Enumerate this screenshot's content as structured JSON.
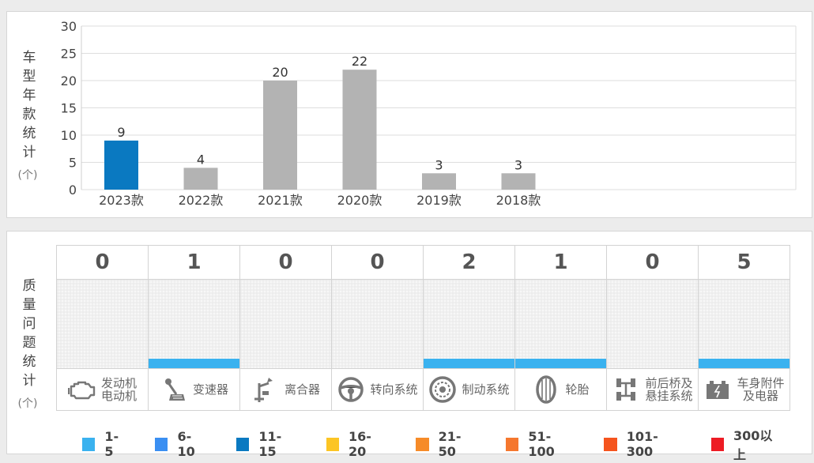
{
  "chart_data": {
    "type": "bar",
    "ylabel_chars": [
      "车",
      "型",
      "年",
      "款",
      "统",
      "计"
    ],
    "yunit": "(个)",
    "categories": [
      "2023款",
      "2022款",
      "2021款",
      "2020款",
      "2019款",
      "2018款"
    ],
    "values": [
      9,
      4,
      20,
      22,
      3,
      3
    ],
    "highlight_index": 0,
    "colors": {
      "highlight": "#0a79c1",
      "default": "#b3b3b3"
    },
    "ylim": [
      0,
      30
    ],
    "yticks": [
      0,
      5,
      10,
      15,
      20,
      25,
      30
    ],
    "grid": true
  },
  "quality": {
    "ylabel_chars": [
      "质",
      "量",
      "问",
      "题",
      "统",
      "计"
    ],
    "yunit": "(个)",
    "items": [
      {
        "count": "0",
        "value": 0,
        "icon": "engine-icon",
        "label_lines": [
          "发动机",
          "电动机"
        ]
      },
      {
        "count": "1",
        "value": 1,
        "icon": "gear-shift-icon",
        "label_lines": [
          "变速器"
        ]
      },
      {
        "count": "0",
        "value": 0,
        "icon": "clutch-pedal-icon",
        "label_lines": [
          "离合器"
        ]
      },
      {
        "count": "0",
        "value": 0,
        "icon": "steering-wheel-icon",
        "label_lines": [
          "转向系统"
        ]
      },
      {
        "count": "2",
        "value": 2,
        "icon": "brake-disc-icon",
        "label_lines": [
          "制动系统"
        ]
      },
      {
        "count": "1",
        "value": 1,
        "icon": "tire-icon",
        "label_lines": [
          "轮胎"
        ]
      },
      {
        "count": "0",
        "value": 0,
        "icon": "axle-suspension-icon",
        "label_lines": [
          "前后桥及",
          "悬挂系统"
        ]
      },
      {
        "count": "5",
        "value": 5,
        "icon": "battery-icon",
        "label_lines": [
          "车身附件",
          "及电器"
        ]
      }
    ],
    "bar_color": "#3ab2ef",
    "legend": [
      {
        "label": "1-5",
        "color": "#3ab2ef"
      },
      {
        "label": "6-10",
        "color": "#3a8ff2"
      },
      {
        "label": "11-15",
        "color": "#0a79c1"
      },
      {
        "label": "16-20",
        "color": "#fcc524"
      },
      {
        "label": "21-50",
        "color": "#f68b28"
      },
      {
        "label": "51-100",
        "color": "#f5772e"
      },
      {
        "label": "101-300",
        "color": "#f5541e"
      },
      {
        "label": "300以上",
        "color": "#ed1c24"
      }
    ]
  }
}
